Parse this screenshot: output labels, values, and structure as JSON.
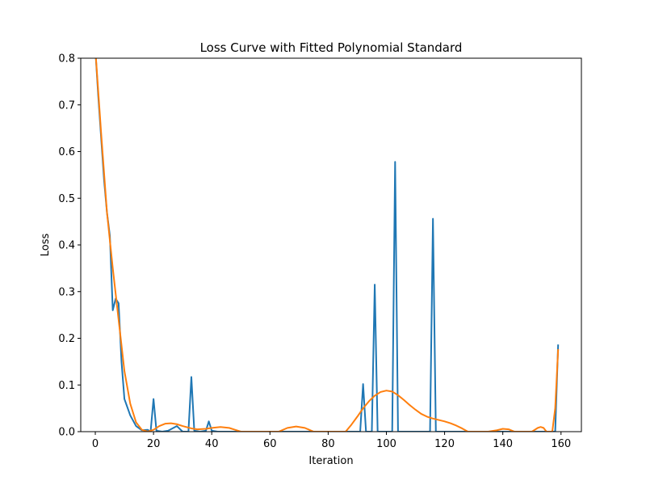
{
  "chart_data": {
    "type": "line",
    "title": "Loss Curve with Fitted Polynomial Standard",
    "xlabel": "Iteration",
    "ylabel": "Loss",
    "xlim": [
      -5,
      167
    ],
    "ylim": [
      0,
      0.8
    ],
    "xticks": [
      0,
      20,
      40,
      60,
      80,
      100,
      120,
      140,
      160
    ],
    "yticks": [
      0.0,
      0.1,
      0.2,
      0.3,
      0.4,
      0.5,
      0.6,
      0.7,
      0.8
    ],
    "grid": false,
    "legend": "none",
    "series": [
      {
        "color": "#1f77b4",
        "points": [
          [
            0,
            0.82
          ],
          [
            1,
            0.72
          ],
          [
            2,
            0.63
          ],
          [
            3,
            0.54
          ],
          [
            4,
            0.47
          ],
          [
            5,
            0.42
          ],
          [
            6,
            0.26
          ],
          [
            7,
            0.285
          ],
          [
            8,
            0.275
          ],
          [
            9,
            0.15
          ],
          [
            10,
            0.07
          ],
          [
            12,
            0.035
          ],
          [
            14,
            0.012
          ],
          [
            16,
            0.003
          ],
          [
            18,
            0.004
          ],
          [
            19,
            0.0
          ],
          [
            20,
            0.07
          ],
          [
            21,
            0.002
          ],
          [
            23,
            0.0
          ],
          [
            25,
            0.002
          ],
          [
            28,
            0.012
          ],
          [
            30,
            0.0
          ],
          [
            32,
            0.0
          ],
          [
            33,
            0.117
          ],
          [
            34,
            0.002
          ],
          [
            36,
            0.0
          ],
          [
            38,
            0.002
          ],
          [
            39,
            0.022
          ],
          [
            40,
            0.002
          ],
          [
            42,
            0.0
          ],
          [
            50,
            0.0
          ],
          [
            70,
            0.0
          ],
          [
            90,
            0.0
          ],
          [
            91,
            0.0
          ],
          [
            92,
            0.102
          ],
          [
            93,
            0.0
          ],
          [
            95,
            0.0
          ],
          [
            96,
            0.315
          ],
          [
            97,
            0.0
          ],
          [
            101,
            0.0
          ],
          [
            102,
            0.0
          ],
          [
            103,
            0.578
          ],
          [
            104,
            0.0
          ],
          [
            115,
            0.0
          ],
          [
            116,
            0.456
          ],
          [
            117,
            0.0
          ],
          [
            140,
            0.0
          ],
          [
            155,
            0.0
          ],
          [
            158,
            0.0
          ],
          [
            159,
            0.185
          ]
        ]
      },
      {
        "color": "#ff7f0e",
        "points": [
          [
            0,
            0.82
          ],
          [
            2,
            0.64
          ],
          [
            4,
            0.47
          ],
          [
            6,
            0.35
          ],
          [
            8,
            0.24
          ],
          [
            10,
            0.13
          ],
          [
            12,
            0.06
          ],
          [
            14,
            0.02
          ],
          [
            16,
            0.004
          ],
          [
            18,
            0.0
          ],
          [
            20,
            0.004
          ],
          [
            22,
            0.012
          ],
          [
            24,
            0.017
          ],
          [
            26,
            0.018
          ],
          [
            28,
            0.016
          ],
          [
            30,
            0.012
          ],
          [
            33,
            0.007
          ],
          [
            35,
            0.005
          ],
          [
            38,
            0.006
          ],
          [
            40,
            0.008
          ],
          [
            43,
            0.01
          ],
          [
            46,
            0.008
          ],
          [
            48,
            0.004
          ],
          [
            50,
            0.0
          ],
          [
            55,
            0.0
          ],
          [
            60,
            0.0
          ],
          [
            63,
            0.0
          ],
          [
            66,
            0.008
          ],
          [
            69,
            0.011
          ],
          [
            72,
            0.008
          ],
          [
            75,
            0.0
          ],
          [
            80,
            0.0
          ],
          [
            86,
            0.0
          ],
          [
            88,
            0.015
          ],
          [
            90,
            0.032
          ],
          [
            92,
            0.05
          ],
          [
            94,
            0.065
          ],
          [
            96,
            0.077
          ],
          [
            98,
            0.085
          ],
          [
            100,
            0.088
          ],
          [
            102,
            0.086
          ],
          [
            104,
            0.078
          ],
          [
            106,
            0.068
          ],
          [
            108,
            0.057
          ],
          [
            110,
            0.047
          ],
          [
            112,
            0.038
          ],
          [
            114,
            0.032
          ],
          [
            116,
            0.028
          ],
          [
            118,
            0.025
          ],
          [
            120,
            0.022
          ],
          [
            122,
            0.018
          ],
          [
            124,
            0.013
          ],
          [
            126,
            0.007
          ],
          [
            128,
            0.0
          ],
          [
            135,
            0.0
          ],
          [
            138,
            0.003
          ],
          [
            140,
            0.006
          ],
          [
            142,
            0.005
          ],
          [
            144,
            0.0
          ],
          [
            150,
            0.0
          ],
          [
            152,
            0.008
          ],
          [
            153,
            0.01
          ],
          [
            154,
            0.008
          ],
          [
            155,
            0.0
          ],
          [
            157,
            0.0
          ],
          [
            158,
            0.05
          ],
          [
            159,
            0.175
          ]
        ]
      }
    ]
  }
}
